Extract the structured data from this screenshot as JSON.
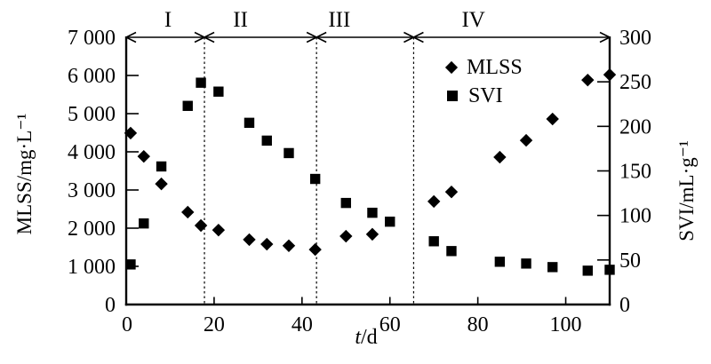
{
  "colors": {
    "foreground": "#000000",
    "background": "#ffffff"
  },
  "chart_data": {
    "type": "scatter",
    "title": "",
    "xlabel": "t/d",
    "xlabel_italic": "t",
    "xlabel_rest": "/d",
    "ylabel_left": "MLSS/mg·L⁻¹",
    "ylabel_right": "SVI/mL·g⁻¹",
    "xlim": [
      0,
      110
    ],
    "ylim_left": [
      0,
      7000
    ],
    "ylim_right": [
      0,
      300
    ],
    "grid": false,
    "legend_position": "inside-top-right",
    "x_ticks": {
      "values": [
        0,
        20,
        40,
        60,
        80,
        100
      ],
      "labels": [
        "0",
        "20",
        "40",
        "60",
        "80",
        "100"
      ]
    },
    "y_ticks_left": {
      "values": [
        0,
        1000,
        2000,
        3000,
        4000,
        5000,
        6000,
        7000
      ],
      "labels": [
        "0",
        "1 000",
        "2 000",
        "3 000",
        "4 000",
        "5 000",
        "6 000",
        "7 000"
      ]
    },
    "y_ticks_right": {
      "values": [
        0,
        50,
        100,
        150,
        200,
        250,
        300
      ],
      "labels": [
        "0",
        "50",
        "100",
        "150",
        "200",
        "250",
        "300"
      ]
    },
    "phases": [
      {
        "label": "I",
        "t_start": 0,
        "t_end": 17.8,
        "label_t": 9.5
      },
      {
        "label": "II",
        "t_start": 17.8,
        "t_end": 43.3,
        "label_t": 26
      },
      {
        "label": "III",
        "t_start": 43.3,
        "t_end": 65.4,
        "label_t": 48.5
      },
      {
        "label": "IV",
        "t_start": 65.4,
        "t_end": 110,
        "label_t": 79
      }
    ],
    "series": [
      {
        "name": "MLSS",
        "marker": "diamond",
        "axis": "left",
        "unit": "mg·L⁻¹",
        "points": [
          [
            1,
            4490
          ],
          [
            4,
            3880
          ],
          [
            8,
            3160
          ],
          [
            14,
            2420
          ],
          [
            17,
            2070
          ],
          [
            21,
            1950
          ],
          [
            28,
            1700
          ],
          [
            32,
            1580
          ],
          [
            37,
            1540
          ],
          [
            43,
            1440
          ],
          [
            50,
            1790
          ],
          [
            56,
            1840
          ],
          [
            70,
            2700
          ],
          [
            74,
            2950
          ],
          [
            85,
            3860
          ],
          [
            91,
            4300
          ],
          [
            97,
            4860
          ],
          [
            105,
            5880
          ],
          [
            110,
            6020
          ]
        ]
      },
      {
        "name": "SVI",
        "marker": "square",
        "axis": "right",
        "unit": "mL·g⁻¹",
        "points": [
          [
            1,
            45
          ],
          [
            4,
            91
          ],
          [
            8,
            155
          ],
          [
            14,
            223
          ],
          [
            17,
            249
          ],
          [
            21,
            239
          ],
          [
            28,
            204
          ],
          [
            32,
            184
          ],
          [
            37,
            170
          ],
          [
            43,
            141
          ],
          [
            50,
            114
          ],
          [
            56,
            103
          ],
          [
            60,
            93
          ],
          [
            70,
            71
          ],
          [
            74,
            60
          ],
          [
            85,
            48
          ],
          [
            91,
            46
          ],
          [
            97,
            42
          ],
          [
            105,
            38
          ],
          [
            110,
            39
          ]
        ]
      }
    ]
  }
}
